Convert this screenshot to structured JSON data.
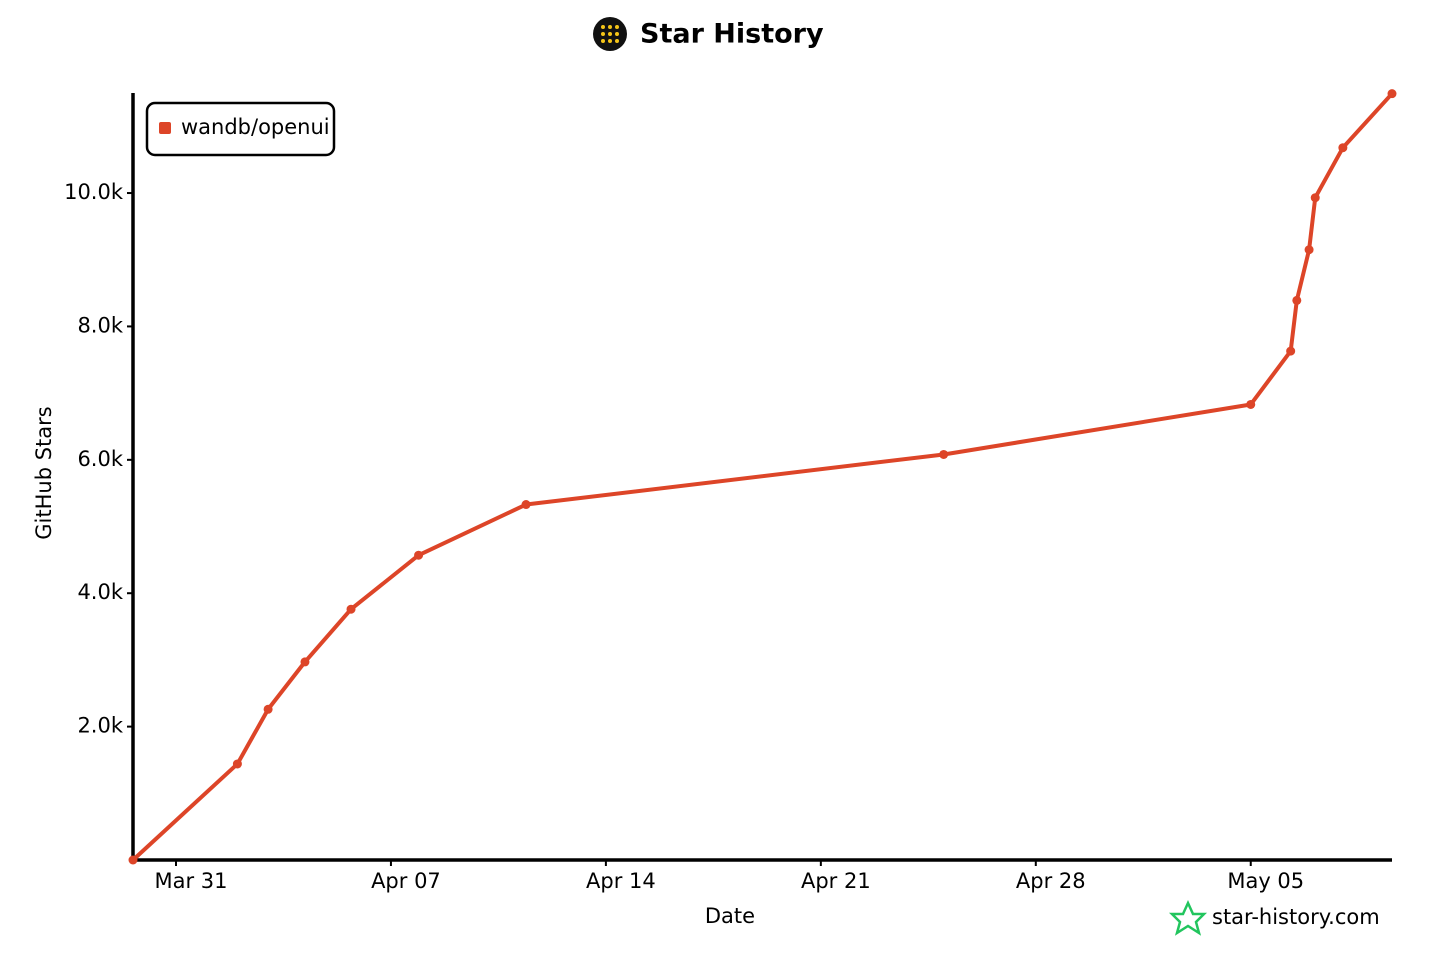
{
  "chart_data": {
    "type": "line",
    "title": "Star History",
    "x_label": "Date",
    "y_label": "GitHub Stars",
    "watermark": "star-history.com",
    "legend": "top-left",
    "grid": false,
    "xlim": [
      -1.4,
      39.6
    ],
    "xticks": [
      {
        "value": 0,
        "label": "Mar 31"
      },
      {
        "value": 7,
        "label": "Apr 07"
      },
      {
        "value": 14,
        "label": "Apr 14"
      },
      {
        "value": 21,
        "label": "Apr 21"
      },
      {
        "value": 28,
        "label": "Apr 28"
      },
      {
        "value": 35,
        "label": "May 05"
      }
    ],
    "ylim": [
      0,
      11500
    ],
    "yticks": [
      {
        "value": 2000,
        "label": "2.0k"
      },
      {
        "value": 4000,
        "label": "4.0k"
      },
      {
        "value": 6000,
        "label": "6.0k"
      },
      {
        "value": 8000,
        "label": "8.0k"
      },
      {
        "value": 10000,
        "label": "10.0k"
      }
    ],
    "x": [
      -1.4,
      2.0,
      3.0,
      4.2,
      5.7,
      7.9,
      11.4,
      25.0,
      35.0,
      36.3,
      36.5,
      36.9,
      37.1,
      38.0,
      39.6
    ],
    "series": [
      {
        "name": "wandb/openui",
        "color": "#dd4528",
        "values": [
          0,
          1440,
          2260,
          2970,
          3760,
          4570,
          5330,
          6080,
          6830,
          7630,
          8390,
          9150,
          9930,
          10680,
          11490
        ]
      }
    ]
  }
}
